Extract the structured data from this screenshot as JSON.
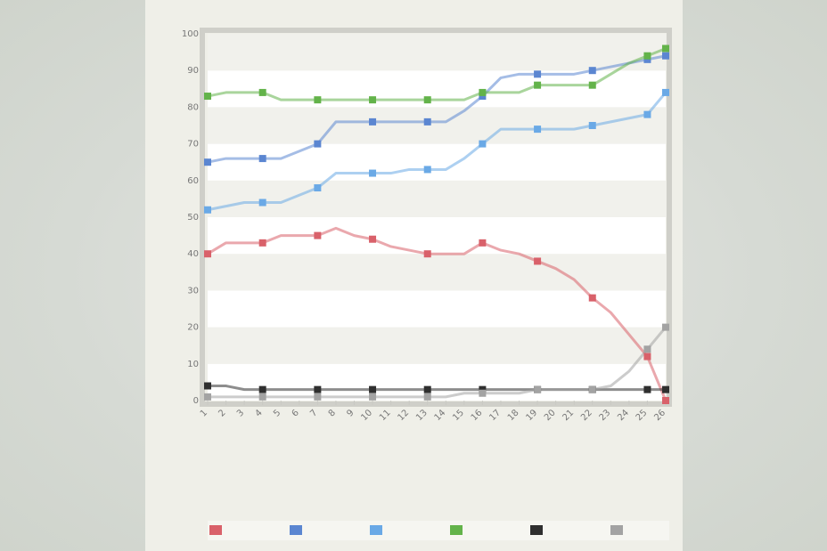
{
  "chart_data": {
    "type": "line",
    "title": "",
    "xlabel": "",
    "ylabel": "",
    "ylim": [
      0,
      100
    ],
    "yticks": [
      0,
      10,
      20,
      30,
      40,
      50,
      60,
      70,
      80,
      90,
      100
    ],
    "categories": [
      "1",
      "2",
      "3",
      "4",
      "5",
      "6",
      "7",
      "8",
      "9",
      "10",
      "11",
      "12",
      "13",
      "14",
      "15",
      "16",
      "17",
      "18",
      "19",
      "20",
      "21",
      "22",
      "23",
      "24",
      "25",
      "26"
    ],
    "grid": "horizontal bands",
    "legend_position": "bottom",
    "series": [
      {
        "color": "#d9616a",
        "values": [
          40,
          43,
          43,
          43,
          45,
          45,
          45,
          47,
          45,
          44,
          42,
          41,
          40,
          40,
          40,
          43,
          41,
          40,
          38,
          36,
          33,
          28,
          24,
          18,
          12,
          0
        ]
      },
      {
        "color": "#5b86d1",
        "values": [
          65,
          66,
          66,
          66,
          66,
          68,
          70,
          76,
          76,
          76,
          76,
          76,
          76,
          76,
          79,
          83,
          88,
          89,
          89,
          89,
          89,
          90,
          91,
          92,
          93,
          94
        ]
      },
      {
        "color": "#6aa9e6",
        "values": [
          52,
          53,
          54,
          54,
          54,
          56,
          58,
          62,
          62,
          62,
          62,
          63,
          63,
          63,
          66,
          70,
          74,
          74,
          74,
          74,
          74,
          75,
          76,
          77,
          78,
          84
        ]
      },
      {
        "color": "#63b34a",
        "values": [
          83,
          84,
          84,
          84,
          82,
          82,
          82,
          82,
          82,
          82,
          82,
          82,
          82,
          82,
          82,
          84,
          84,
          84,
          86,
          86,
          86,
          86,
          89,
          92,
          94,
          96
        ]
      },
      {
        "color": "#2f2f2f",
        "values": [
          4,
          4,
          3,
          3,
          3,
          3,
          3,
          3,
          3,
          3,
          3,
          3,
          3,
          3,
          3,
          3,
          3,
          3,
          3,
          3,
          3,
          3,
          3,
          3,
          3,
          3
        ]
      },
      {
        "color": "#a3a3a3",
        "values": [
          1,
          1,
          1,
          1,
          1,
          1,
          1,
          1,
          1,
          1,
          1,
          1,
          1,
          1,
          2,
          2,
          2,
          2,
          3,
          3,
          3,
          3,
          4,
          8,
          14,
          20
        ]
      }
    ]
  }
}
